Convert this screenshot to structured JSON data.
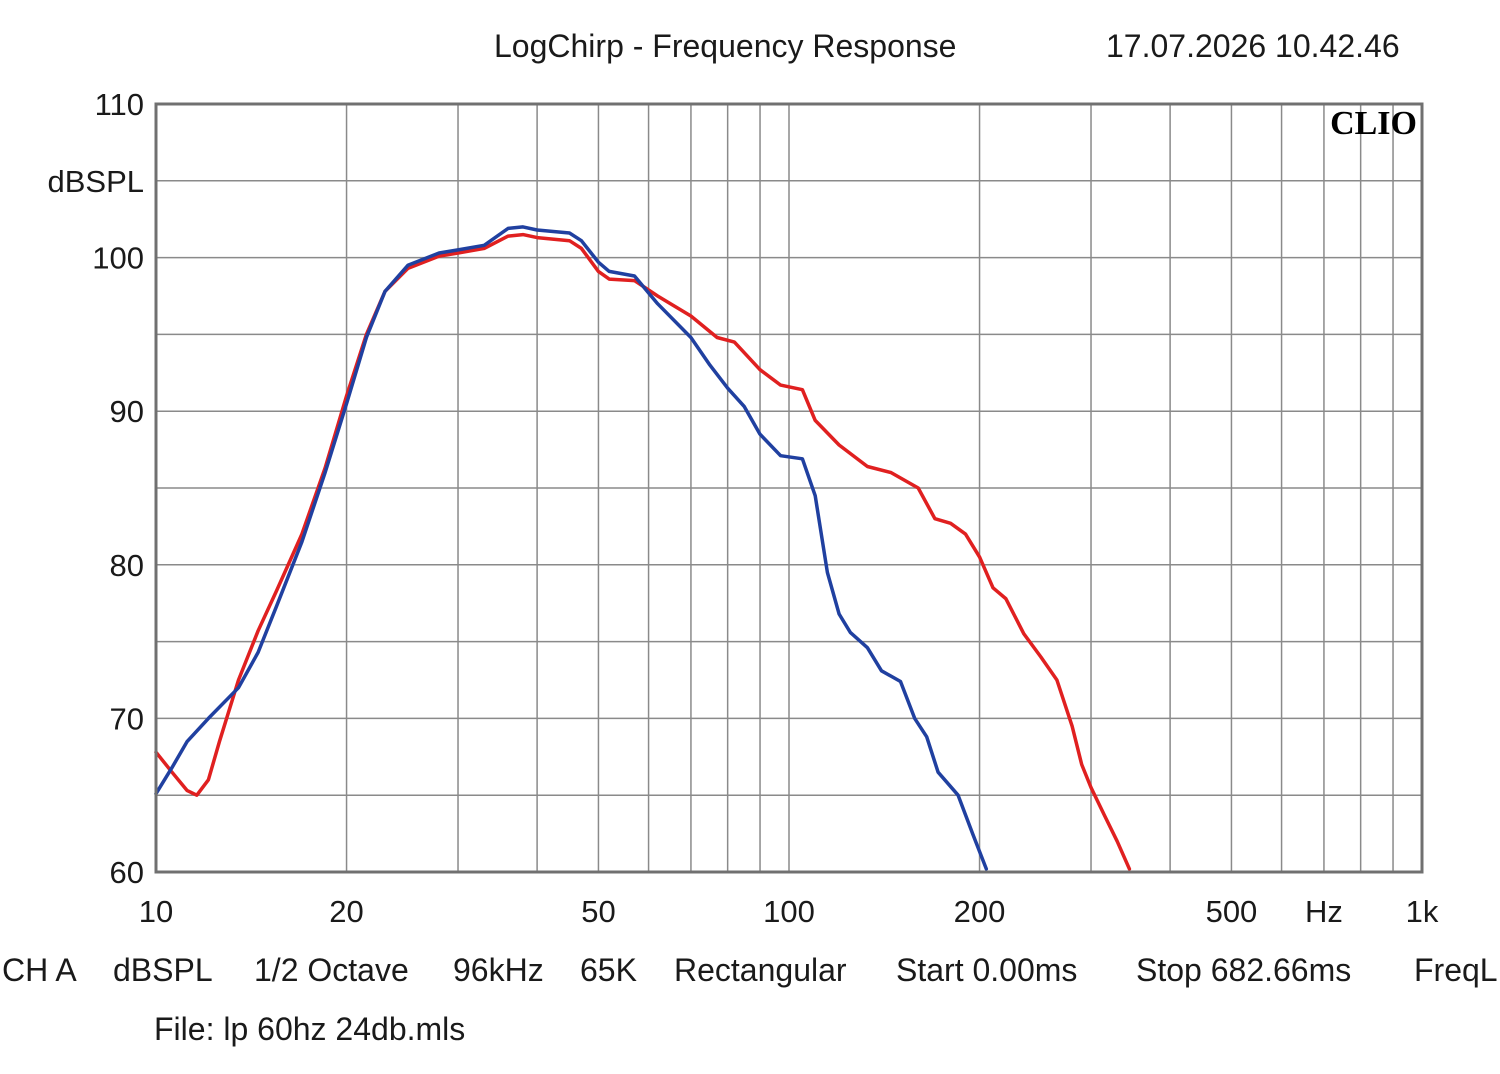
{
  "header": {
    "title": "LogChirp - Frequency Response",
    "timestamp": "17.07.2026 10.42.46"
  },
  "logo": "CLIO",
  "footer": {
    "info": [
      "CH A",
      "dBSPL",
      "1/2 Octave",
      "96kHz",
      "65K",
      "Rectangular",
      "Start 0.00ms",
      "Stop 682.66ms",
      "FreqL"
    ],
    "file": "File: lp 60hz 24db.mls"
  },
  "chart_data": {
    "type": "line",
    "title": "LogChirp - Frequency Response",
    "xlabel": "Hz",
    "ylabel": "dBSPL",
    "xscale": "log",
    "xlim": [
      10,
      1000
    ],
    "ylim": [
      60,
      110
    ],
    "grid": true,
    "x_tick_labels": [
      {
        "value": 10,
        "label": "10"
      },
      {
        "value": 20,
        "label": "20"
      },
      {
        "value": 50,
        "label": "50"
      },
      {
        "value": 100,
        "label": "100"
      },
      {
        "value": 200,
        "label": "200"
      },
      {
        "value": 500,
        "label": "500"
      },
      {
        "value": 1000,
        "label": "1k"
      }
    ],
    "y_tick_labels": [
      {
        "value": 110,
        "label": "110"
      },
      {
        "value": 100,
        "label": "100"
      },
      {
        "value": 90,
        "label": "90"
      },
      {
        "value": 80,
        "label": "80"
      },
      {
        "value": 70,
        "label": "70"
      },
      {
        "value": 60,
        "label": "60"
      }
    ],
    "series": [
      {
        "color": "#e02020",
        "points": [
          [
            10,
            67.8
          ],
          [
            10.6,
            66.5
          ],
          [
            11.2,
            65.3
          ],
          [
            11.6,
            65.0
          ],
          [
            12.1,
            66.0
          ],
          [
            12.6,
            68.5
          ],
          [
            13.5,
            72.5
          ],
          [
            14.5,
            75.7
          ],
          [
            15.5,
            78.3
          ],
          [
            17,
            82.0
          ],
          [
            18.5,
            86.3
          ],
          [
            20,
            91.0
          ],
          [
            21.5,
            95.0
          ],
          [
            23,
            97.8
          ],
          [
            25,
            99.3
          ],
          [
            28,
            100.1
          ],
          [
            30,
            100.3
          ],
          [
            33,
            100.6
          ],
          [
            36,
            101.4
          ],
          [
            38,
            101.5
          ],
          [
            40,
            101.3
          ],
          [
            45,
            101.1
          ],
          [
            47,
            100.6
          ],
          [
            50,
            99.1
          ],
          [
            52,
            98.6
          ],
          [
            57,
            98.5
          ],
          [
            62,
            97.5
          ],
          [
            70,
            96.2
          ],
          [
            77,
            94.8
          ],
          [
            82,
            94.5
          ],
          [
            90,
            92.7
          ],
          [
            97,
            91.7
          ],
          [
            105,
            91.4
          ],
          [
            110,
            89.4
          ],
          [
            120,
            87.8
          ],
          [
            133,
            86.4
          ],
          [
            145,
            86.0
          ],
          [
            160,
            85.0
          ],
          [
            170,
            83.0
          ],
          [
            180,
            82.7
          ],
          [
            190,
            82.0
          ],
          [
            200,
            80.5
          ],
          [
            210,
            78.5
          ],
          [
            220,
            77.8
          ],
          [
            235,
            75.5
          ],
          [
            250,
            74.0
          ],
          [
            265,
            72.5
          ],
          [
            280,
            69.5
          ],
          [
            290,
            67.0
          ],
          [
            300,
            65.5
          ],
          [
            315,
            63.7
          ],
          [
            330,
            62.0
          ],
          [
            345,
            60.2
          ]
        ]
      },
      {
        "color": "#2040a0",
        "points": [
          [
            10,
            65.1
          ],
          [
            10.6,
            66.8
          ],
          [
            11.2,
            68.5
          ],
          [
            12.1,
            70.0
          ],
          [
            13.5,
            72.0
          ],
          [
            14.5,
            74.3
          ],
          [
            15.5,
            77.3
          ],
          [
            17,
            81.5
          ],
          [
            18.5,
            86.0
          ],
          [
            20,
            90.5
          ],
          [
            21.5,
            94.8
          ],
          [
            23,
            97.8
          ],
          [
            25,
            99.5
          ],
          [
            28,
            100.3
          ],
          [
            30,
            100.5
          ],
          [
            33,
            100.8
          ],
          [
            36,
            101.9
          ],
          [
            38,
            102.0
          ],
          [
            40,
            101.8
          ],
          [
            45,
            101.6
          ],
          [
            47,
            101.1
          ],
          [
            50,
            99.7
          ],
          [
            52,
            99.1
          ],
          [
            57,
            98.8
          ],
          [
            62,
            97.0
          ],
          [
            70,
            94.8
          ],
          [
            75,
            93.0
          ],
          [
            80,
            91.5
          ],
          [
            85,
            90.3
          ],
          [
            90,
            88.5
          ],
          [
            97,
            87.1
          ],
          [
            105,
            86.9
          ],
          [
            110,
            84.5
          ],
          [
            115,
            79.5
          ],
          [
            120,
            76.8
          ],
          [
            125,
            75.6
          ],
          [
            133,
            74.6
          ],
          [
            140,
            73.1
          ],
          [
            150,
            72.4
          ],
          [
            158,
            70.0
          ],
          [
            165,
            68.8
          ],
          [
            172,
            66.5
          ],
          [
            185,
            65.0
          ],
          [
            195,
            62.5
          ],
          [
            205,
            60.2
          ]
        ]
      }
    ]
  }
}
